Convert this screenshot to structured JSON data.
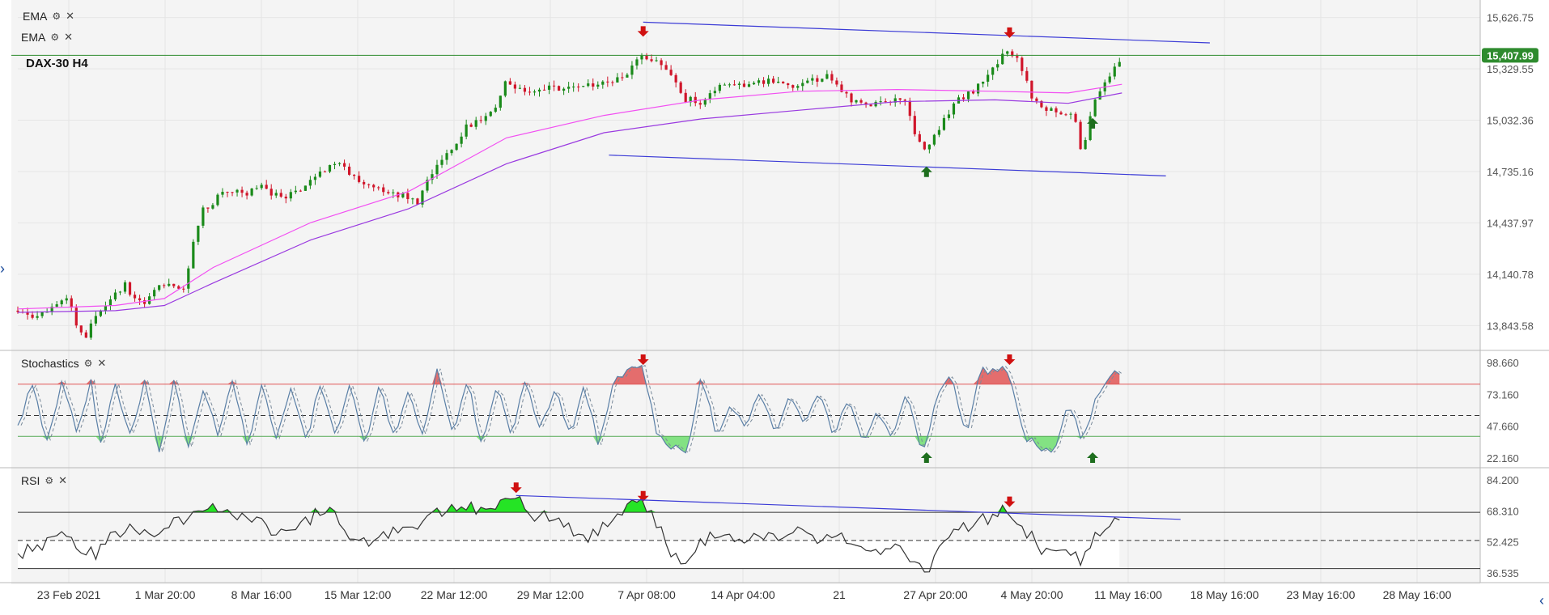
{
  "legends": {
    "ema1": {
      "label": "EMA"
    },
    "ema2": {
      "label": "EMA"
    },
    "stoch": {
      "label": "Stochastics"
    },
    "rsi": {
      "label": "RSI"
    }
  },
  "symbol": "DAX-30 H4",
  "colors": {
    "up": "#1a8a1a",
    "down": "#d0152a",
    "ema_fast": "#f24ff2",
    "ema_slow": "#9a3ae0",
    "trendline": "#3b3bd6",
    "price_line": "#2e8b2e",
    "arrow_down": "#d01010",
    "arrow_up": "#1e6e1e"
  },
  "icons": {
    "settings": "gear-icon",
    "close": "close-icon",
    "expand": "chevron-right-icon",
    "collapse": "chevron-left-icon"
  },
  "chart_data": [
    {
      "type": "candlestick",
      "title": "DAX-30 H4",
      "ylim": [
        13700,
        15700
      ],
      "y_ticks": [
        "15,626.75",
        "15,329.55",
        "15,032.36",
        "14,735.16",
        "14,437.97",
        "14,140.78",
        "13,843.58"
      ],
      "last_price": "15,407.99",
      "x_ticks": [
        "23 Feb 2021",
        "1 Mar 20:00",
        "8 Mar 16:00",
        "15 Mar 12:00",
        "22 Mar 12:00",
        "29 Mar 12:00",
        "7 Apr 08:00",
        "14 Apr 04:00",
        "21",
        "27 Apr 20:00",
        "4 May 20:00",
        "11 May 16:00",
        "18 May 16:00",
        "23 May 16:00",
        "28 May 16:00"
      ],
      "close_path": [
        [
          0,
          13930
        ],
        [
          4,
          13900
        ],
        [
          8,
          13960
        ],
        [
          10,
          14010
        ],
        [
          12,
          13850
        ],
        [
          14,
          13780
        ],
        [
          16,
          13920
        ],
        [
          18,
          13960
        ],
        [
          20,
          14040
        ],
        [
          22,
          14080
        ],
        [
          24,
          14000
        ],
        [
          26,
          13950
        ],
        [
          28,
          14060
        ],
        [
          30,
          14080
        ],
        [
          34,
          14040
        ],
        [
          36,
          14350
        ],
        [
          38,
          14520
        ],
        [
          40,
          14560
        ],
        [
          42,
          14640
        ],
        [
          46,
          14600
        ],
        [
          50,
          14640
        ],
        [
          54,
          14580
        ],
        [
          58,
          14620
        ],
        [
          62,
          14740
        ],
        [
          66,
          14780
        ],
        [
          70,
          14680
        ],
        [
          74,
          14640
        ],
        [
          78,
          14600
        ],
        [
          82,
          14560
        ],
        [
          84,
          14700
        ],
        [
          88,
          14830
        ],
        [
          92,
          15000
        ],
        [
          96,
          15040
        ],
        [
          98,
          15130
        ],
        [
          100,
          15260
        ],
        [
          104,
          15200
        ],
        [
          110,
          15220
        ],
        [
          118,
          15230
        ],
        [
          124,
          15280
        ],
        [
          128,
          15410
        ],
        [
          131,
          15380
        ],
        [
          134,
          15300
        ],
        [
          136,
          15160
        ],
        [
          140,
          15130
        ],
        [
          144,
          15260
        ],
        [
          148,
          15240
        ],
        [
          154,
          15260
        ],
        [
          160,
          15230
        ],
        [
          166,
          15290
        ],
        [
          170,
          15160
        ],
        [
          174,
          15120
        ],
        [
          178,
          15140
        ],
        [
          182,
          15150
        ],
        [
          184,
          14900
        ],
        [
          186,
          14860
        ],
        [
          188,
          14950
        ],
        [
          192,
          15150
        ],
        [
          196,
          15210
        ],
        [
          200,
          15350
        ],
        [
          202,
          15420
        ],
        [
          205,
          15370
        ],
        [
          208,
          15140
        ],
        [
          212,
          15080
        ],
        [
          214,
          15070
        ],
        [
          216,
          15080
        ],
        [
          218,
          14820
        ],
        [
          220,
          15140
        ],
        [
          222,
          15220
        ],
        [
          224,
          15320
        ],
        [
          226,
          15400
        ]
      ],
      "series": [
        {
          "name": "EMA",
          "path": [
            [
              0,
              13940
            ],
            [
              20,
              13960
            ],
            [
              30,
              14000
            ],
            [
              40,
              14180
            ],
            [
              60,
              14440
            ],
            [
              80,
              14620
            ],
            [
              100,
              14930
            ],
            [
              120,
              15060
            ],
            [
              140,
              15150
            ],
            [
              160,
              15200
            ],
            [
              180,
              15210
            ],
            [
              200,
              15200
            ],
            [
              215,
              15190
            ],
            [
              226,
              15240
            ]
          ]
        },
        {
          "name": "EMA",
          "path": [
            [
              0,
              13920
            ],
            [
              20,
              13930
            ],
            [
              30,
              13960
            ],
            [
              40,
              14090
            ],
            [
              60,
              14340
            ],
            [
              80,
              14520
            ],
            [
              100,
              14780
            ],
            [
              120,
              14960
            ],
            [
              140,
              15040
            ],
            [
              160,
              15090
            ],
            [
              180,
              15140
            ],
            [
              200,
              15150
            ],
            [
              215,
              15130
            ],
            [
              226,
              15190
            ]
          ]
        }
      ],
      "trendlines": [
        [
          [
            128,
            15600
          ],
          [
            244,
            15480
          ]
        ],
        [
          [
            121,
            14830
          ],
          [
            235,
            14710
          ]
        ]
      ],
      "arrows_down": [
        128,
        203
      ],
      "arrows_up": [
        186,
        220
      ]
    },
    {
      "type": "line",
      "title": "Stochastics",
      "ylim": [
        0,
        110
      ],
      "y_ticks": [
        "98.660",
        "73.160",
        "47.660",
        "22.160"
      ],
      "levels": [
        80,
        50,
        30
      ],
      "series_path": [
        [
          0,
          40
        ],
        [
          3,
          80
        ],
        [
          6,
          25
        ],
        [
          9,
          80
        ],
        [
          12,
          35
        ],
        [
          15,
          82
        ],
        [
          17,
          20
        ],
        [
          20,
          80
        ],
        [
          23,
          30
        ],
        [
          26,
          85
        ],
        [
          29,
          15
        ],
        [
          32,
          82
        ],
        [
          35,
          20
        ],
        [
          38,
          75
        ],
        [
          41,
          30
        ],
        [
          44,
          85
        ],
        [
          47,
          20
        ],
        [
          50,
          78
        ],
        [
          53,
          30
        ],
        [
          56,
          80
        ],
        [
          59,
          25
        ],
        [
          62,
          82
        ],
        [
          65,
          30
        ],
        [
          68,
          85
        ],
        [
          71,
          22
        ],
        [
          74,
          80
        ],
        [
          77,
          28
        ],
        [
          80,
          75
        ],
        [
          83,
          30
        ],
        [
          86,
          95
        ],
        [
          89,
          30
        ],
        [
          92,
          85
        ],
        [
          95,
          20
        ],
        [
          98,
          80
        ],
        [
          101,
          30
        ],
        [
          104,
          85
        ],
        [
          107,
          35
        ],
        [
          110,
          75
        ],
        [
          113,
          30
        ],
        [
          116,
          80
        ],
        [
          119,
          20
        ],
        [
          122,
          85
        ],
        [
          125,
          92
        ],
        [
          128,
          95
        ],
        [
          131,
          30
        ],
        [
          134,
          20
        ],
        [
          137,
          15
        ],
        [
          140,
          90
        ],
        [
          143,
          30
        ],
        [
          146,
          60
        ],
        [
          149,
          40
        ],
        [
          152,
          75
        ],
        [
          155,
          30
        ],
        [
          158,
          70
        ],
        [
          161,
          40
        ],
        [
          164,
          75
        ],
        [
          167,
          30
        ],
        [
          170,
          70
        ],
        [
          173,
          25
        ],
        [
          176,
          55
        ],
        [
          179,
          30
        ],
        [
          182,
          75
        ],
        [
          185,
          10
        ],
        [
          188,
          65
        ],
        [
          191,
          90
        ],
        [
          194,
          30
        ],
        [
          197,
          92
        ],
        [
          200,
          94
        ],
        [
          203,
          92
        ],
        [
          206,
          30
        ],
        [
          209,
          20
        ],
        [
          212,
          15
        ],
        [
          215,
          65
        ],
        [
          218,
          25
        ],
        [
          221,
          70
        ],
        [
          224,
          93
        ],
        [
          226,
          88
        ]
      ],
      "arrows_down": [
        128,
        203
      ],
      "arrows_up": [
        186,
        220
      ]
    },
    {
      "type": "line",
      "title": "RSI",
      "ylim": [
        20,
        100
      ],
      "y_ticks": [
        "84.200",
        "68.310",
        "52.425",
        "36.535"
      ],
      "levels": [
        70,
        50,
        30
      ],
      "series_path": [
        [
          0,
          40
        ],
        [
          4,
          45
        ],
        [
          8,
          55
        ],
        [
          12,
          45
        ],
        [
          16,
          40
        ],
        [
          20,
          55
        ],
        [
          24,
          60
        ],
        [
          28,
          55
        ],
        [
          32,
          62
        ],
        [
          36,
          70
        ],
        [
          40,
          72
        ],
        [
          44,
          68
        ],
        [
          48,
          65
        ],
        [
          52,
          58
        ],
        [
          56,
          60
        ],
        [
          60,
          66
        ],
        [
          64,
          74
        ],
        [
          68,
          55
        ],
        [
          72,
          50
        ],
        [
          76,
          55
        ],
        [
          80,
          60
        ],
        [
          84,
          65
        ],
        [
          88,
          72
        ],
        [
          92,
          74
        ],
        [
          96,
          72
        ],
        [
          100,
          78
        ],
        [
          102,
          82
        ],
        [
          104,
          70
        ],
        [
          108,
          66
        ],
        [
          112,
          60
        ],
        [
          116,
          52
        ],
        [
          120,
          60
        ],
        [
          124,
          72
        ],
        [
          128,
          76
        ],
        [
          130,
          68
        ],
        [
          132,
          55
        ],
        [
          134,
          40
        ],
        [
          136,
          32
        ],
        [
          140,
          50
        ],
        [
          144,
          55
        ],
        [
          148,
          50
        ],
        [
          152,
          55
        ],
        [
          156,
          50
        ],
        [
          160,
          58
        ],
        [
          164,
          50
        ],
        [
          168,
          56
        ],
        [
          172,
          48
        ],
        [
          176,
          42
        ],
        [
          180,
          50
        ],
        [
          184,
          30
        ],
        [
          186,
          28
        ],
        [
          188,
          40
        ],
        [
          192,
          58
        ],
        [
          196,
          62
        ],
        [
          200,
          68
        ],
        [
          203,
          72
        ],
        [
          206,
          58
        ],
        [
          210,
          42
        ],
        [
          214,
          48
        ],
        [
          218,
          35
        ],
        [
          220,
          50
        ],
        [
          224,
          65
        ],
        [
          226,
          64
        ]
      ],
      "trendline": [
        [
          102,
          82
        ],
        [
          238,
          65
        ]
      ],
      "arrows_down": [
        102,
        128,
        203
      ]
    }
  ]
}
